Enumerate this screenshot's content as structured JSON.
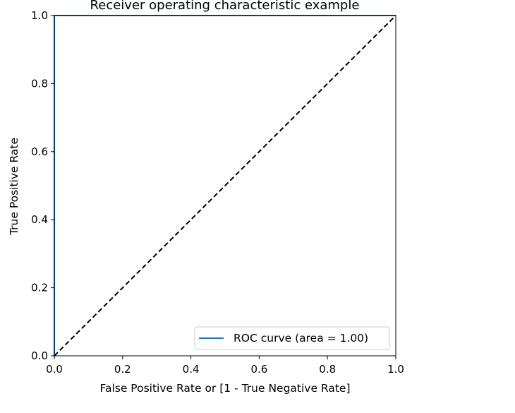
{
  "chart_data": {
    "type": "line",
    "title": "Receiver operating characteristic example",
    "xlabel": "False Positive Rate or [1 - True Negative Rate]",
    "ylabel": "True Positive Rate",
    "xlim": [
      0.0,
      1.0
    ],
    "ylim": [
      0.0,
      1.0
    ],
    "xticks": [
      0.0,
      0.2,
      0.4,
      0.6,
      0.8,
      1.0
    ],
    "yticks": [
      0.0,
      0.2,
      0.4,
      0.6,
      0.8,
      1.0
    ],
    "xtick_labels": [
      "0.0",
      "0.2",
      "0.4",
      "0.6",
      "0.8",
      "1.0"
    ],
    "ytick_labels": [
      "0.0",
      "0.2",
      "0.4",
      "0.6",
      "0.8",
      "1.0"
    ],
    "grid": false,
    "legend_position": "lower-right",
    "series": [
      {
        "name": "ROC curve (area = 1.00)",
        "color": "#1f77b4",
        "style": "solid",
        "x": [
          0.0,
          0.0,
          1.0
        ],
        "y": [
          0.0,
          1.0,
          1.0
        ]
      },
      {
        "name": "",
        "color": "#000000",
        "style": "dashed",
        "x": [
          0.0,
          1.0
        ],
        "y": [
          0.0,
          1.0
        ]
      }
    ]
  }
}
